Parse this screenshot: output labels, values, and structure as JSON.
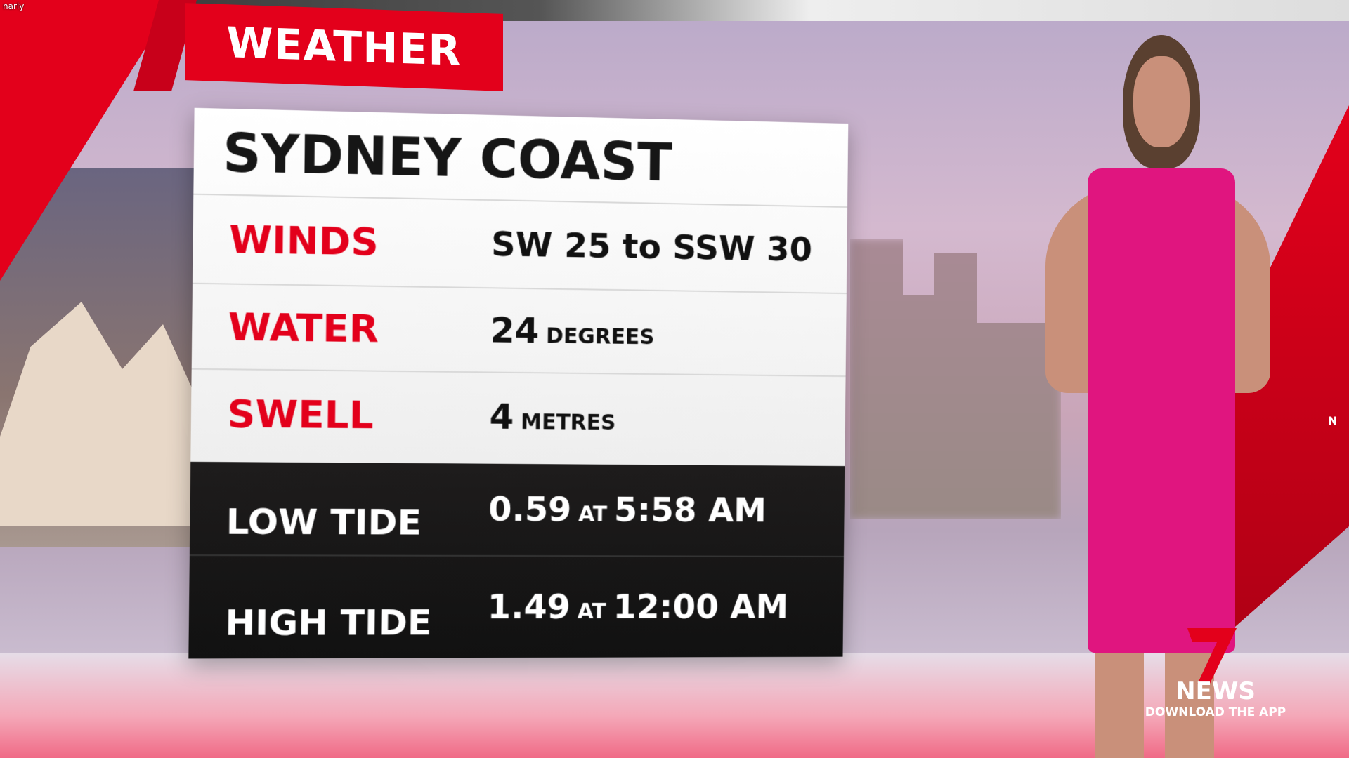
{
  "corner_text": "narly",
  "banner": {
    "label": "WEATHER"
  },
  "board": {
    "title": "SYDNEY COAST",
    "rows": [
      {
        "label": "WINDS",
        "value": "SW 25 to SSW 30"
      },
      {
        "label": "WATER",
        "value": "24",
        "unit": "DEGREES"
      },
      {
        "label": "SWELL",
        "value": "4",
        "unit": "METRES"
      }
    ],
    "tides": [
      {
        "label": "LOW TIDE",
        "height": "0.59",
        "at": "AT",
        "time": "5:58 AM"
      },
      {
        "label": "HIGH TIDE",
        "height": "1.49",
        "at": "AT",
        "time": "12:00 AM"
      }
    ]
  },
  "logo": {
    "brand": "NEWS",
    "tagline": "DOWNLOAD THE APP"
  },
  "edge_text": "N",
  "colors": {
    "accent_red": "#e3001b",
    "dress_pink": "#e0157f",
    "board_dark": "#1a1818"
  }
}
